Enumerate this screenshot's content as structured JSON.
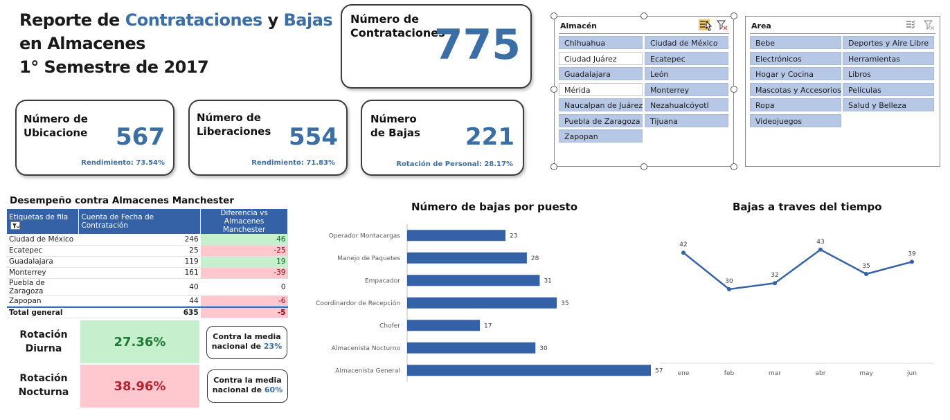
{
  "title": {
    "w1": "Reporte de ",
    "w2": "Contrataciones",
    "w3": " y ",
    "w4": "Bajas",
    "w5": " en Almacenes",
    "line2": "1° Semestre de 2017"
  },
  "colors": {
    "accent": "#3a6ea5",
    "bar": "#3562a6",
    "positive_bg": "#c6efce",
    "negative_bg": "#ffc7ce"
  },
  "kpis": {
    "contrataciones": {
      "label": "Número de Contrataciones",
      "value": "775"
    },
    "ubicaciones": {
      "label": "Número de Ubicacione",
      "value": "567",
      "sub": "Rendimiento: 73.54%"
    },
    "liberaciones": {
      "label": "Número de Liberaciones",
      "value": "554",
      "sub": "Rendimiento: 71.83%"
    },
    "bajas": {
      "label": "Número de Bajas",
      "value": "221",
      "sub": "Rotación de Personal: 28.17%"
    }
  },
  "slicer_almacen": {
    "title": "Almacén",
    "items": [
      {
        "label": "Chihuahua",
        "selected": true
      },
      {
        "label": "Ciudad de México",
        "selected": true
      },
      {
        "label": "Ciudad Juárez",
        "selected": false
      },
      {
        "label": "Ecatepec",
        "selected": true
      },
      {
        "label": "Guadalajara",
        "selected": true
      },
      {
        "label": "León",
        "selected": true
      },
      {
        "label": "Mérida",
        "selected": false
      },
      {
        "label": "Monterrey",
        "selected": true
      },
      {
        "label": "Naucalpan de Juárez",
        "selected": true
      },
      {
        "label": "Nezahualcóyotl",
        "selected": true
      },
      {
        "label": "Puebla de Zaragoza",
        "selected": true
      },
      {
        "label": "Tijuana",
        "selected": true
      },
      {
        "label": "Zapopan",
        "selected": true
      }
    ]
  },
  "slicer_area": {
    "title": "Area",
    "items": [
      {
        "label": "Bebe",
        "selected": true
      },
      {
        "label": "Deportes y Aire Libre",
        "selected": true
      },
      {
        "label": "Electrónicos",
        "selected": true
      },
      {
        "label": "Herramientas",
        "selected": true
      },
      {
        "label": "Hogar y Cocina",
        "selected": true
      },
      {
        "label": "Libros",
        "selected": true
      },
      {
        "label": "Mascotas y Accesorios",
        "selected": true
      },
      {
        "label": "Películas",
        "selected": true
      },
      {
        "label": "Ropa",
        "selected": true
      },
      {
        "label": "Salud y Belleza",
        "selected": true
      },
      {
        "label": "Videojuegos",
        "selected": true
      }
    ]
  },
  "pivot": {
    "title": "Desempeño contra Almacenes Manchester",
    "headers": [
      "Etiquetas de fila",
      "Cuenta de Fecha de Contratación",
      "Diferencia vs Almacenes Manchester"
    ],
    "rows": [
      {
        "name": "Ciudad de México",
        "count": "246",
        "diff": "46"
      },
      {
        "name": "Ecatepec",
        "count": "25",
        "diff": "-25"
      },
      {
        "name": "Guadalajara",
        "count": "119",
        "diff": "19"
      },
      {
        "name": "Monterrey",
        "count": "161",
        "diff": "-39"
      },
      {
        "name": "Puebla de Zaragoza",
        "count": "40",
        "diff": "0"
      },
      {
        "name": "Zapopan",
        "count": "44",
        "diff": "-6"
      }
    ],
    "total": {
      "name": "Total general",
      "count": "635",
      "diff": "-5"
    }
  },
  "rotation": {
    "diurna": {
      "label": "Rotación Diurna",
      "value": "27.36%",
      "media_text": "Contra la media nacional de ",
      "media_pct": "23%"
    },
    "nocturna": {
      "label": "Rotación Nocturna",
      "value": "38.96%",
      "media_text": "Contra la media nacional de ",
      "media_pct": "60%"
    }
  },
  "chart_data": [
    {
      "type": "bar",
      "orientation": "horizontal",
      "title": "Número de bajas por puesto",
      "categories": [
        "Operador Montacargas",
        "Manejo de Paquetes",
        "Empacador",
        "Coordinardor de Recepción",
        "Chofer",
        "Almacenista Nocturno",
        "Almacenista General"
      ],
      "values": [
        23,
        28,
        31,
        35,
        17,
        30,
        57
      ],
      "data_labels": true,
      "grid": false,
      "legend": "none"
    },
    {
      "type": "line",
      "title": "Bajas a traves del tiempo",
      "categories": [
        "ene",
        "feb",
        "mar",
        "abr",
        "may",
        "jun"
      ],
      "values": [
        42,
        30,
        32,
        43,
        35,
        39
      ],
      "data_labels": true,
      "markers": true,
      "grid": false,
      "legend": "none"
    }
  ]
}
